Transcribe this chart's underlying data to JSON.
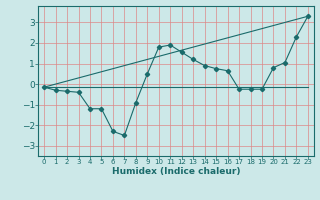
{
  "xlabel": "Humidex (Indice chaleur)",
  "background_color": "#cce8e8",
  "grid_color": "#ee9999",
  "line_color": "#1a6b6b",
  "spine_color": "#888888",
  "xlim": [
    -0.5,
    23.5
  ],
  "ylim": [
    -3.5,
    3.8
  ],
  "yticks": [
    -3,
    -2,
    -1,
    0,
    1,
    2,
    3
  ],
  "xticks": [
    0,
    1,
    2,
    3,
    4,
    5,
    6,
    7,
    8,
    9,
    10,
    11,
    12,
    13,
    14,
    15,
    16,
    17,
    18,
    19,
    20,
    21,
    22,
    23
  ],
  "line1_x": [
    0,
    1,
    2,
    3,
    4,
    5,
    6,
    7,
    8,
    9,
    10,
    11,
    12,
    13,
    14,
    15,
    16,
    17,
    18,
    19,
    20,
    21,
    22,
    23
  ],
  "line1_y": [
    -0.15,
    -0.3,
    -0.35,
    -0.4,
    -1.2,
    -1.2,
    -2.3,
    -2.5,
    -0.9,
    0.5,
    1.8,
    1.9,
    1.55,
    1.2,
    0.9,
    0.75,
    0.65,
    -0.25,
    -0.25,
    -0.25,
    0.8,
    1.05,
    2.3,
    3.3
  ],
  "line2_x": [
    0,
    23
  ],
  "line2_y": [
    -0.15,
    -0.15
  ],
  "line3_x": [
    0,
    23
  ],
  "line3_y": [
    -0.15,
    3.3
  ]
}
